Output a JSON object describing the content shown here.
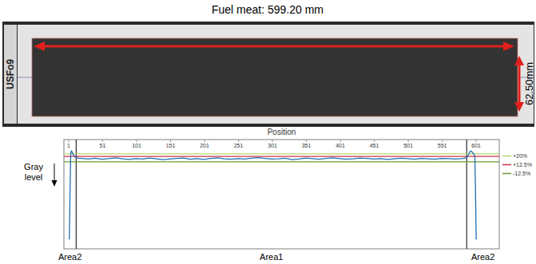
{
  "title": "Fuel meat: 599.20 mm",
  "photo": {
    "plate_id": "USFo9",
    "width_label": "62.50mm"
  },
  "chart_data": {
    "type": "line",
    "x_label": "Position",
    "y_label": "Gray level",
    "x": [
      1,
      2,
      3,
      4,
      5,
      6,
      8,
      10,
      13,
      16,
      20,
      30,
      40,
      50,
      60,
      70,
      80,
      90,
      100,
      110,
      120,
      130,
      140,
      150,
      160,
      170,
      180,
      190,
      200,
      210,
      220,
      230,
      240,
      250,
      260,
      270,
      280,
      290,
      300,
      310,
      320,
      330,
      340,
      350,
      360,
      370,
      380,
      390,
      400,
      410,
      420,
      430,
      440,
      450,
      460,
      470,
      480,
      490,
      500,
      510,
      520,
      530,
      540,
      550,
      560,
      570,
      580,
      585,
      588,
      591,
      593,
      595,
      597,
      599,
      600,
      601,
      602
    ],
    "series": [
      {
        "color": "#1f6fb4",
        "values": [
          10,
          10,
          55,
          96,
          99,
          98,
          95,
          93,
          92,
          91.6,
          91.5,
          90.8,
          91.6,
          90.6,
          91.2,
          92.0,
          91.0,
          90.4,
          91.3,
          90.9,
          91.8,
          91.1,
          90.2,
          90.8,
          91.5,
          91.9,
          90.7,
          91.2,
          90.5,
          91.4,
          92.1,
          91.0,
          90.6,
          91.3,
          90.9,
          91.7,
          92.2,
          91.4,
          90.8,
          91.1,
          91.6,
          90.3,
          90.9,
          91.8,
          91.2,
          90.6,
          91.4,
          92.0,
          91.3,
          90.7,
          91.1,
          91.9,
          91.5,
          90.8,
          91.2,
          90.5,
          91.0,
          91.6,
          91.3,
          90.7,
          91.4,
          91.0,
          90.6,
          91.5,
          91.2,
          90.9,
          91.3,
          91.8,
          93,
          97,
          99,
          98,
          96,
          94,
          60,
          10,
          10
        ]
      }
    ],
    "reference_lines": [
      {
        "name": "+20%",
        "color": "#b8d86b",
        "value": 96
      },
      {
        "name": "+12.5%",
        "color": "#d0304c",
        "value": 93.5
      },
      {
        "name": "-12.5%",
        "color": "#6a9e2e",
        "value": 88
      }
    ],
    "area_boundaries": [
      12,
      587
    ],
    "area_labels": [
      "Area2",
      "Area1",
      "Area2"
    ],
    "xlim": [
      -6,
      635
    ],
    "xticks": [
      1,
      51,
      101,
      151,
      201,
      251,
      301,
      351,
      401,
      451,
      501,
      551,
      601
    ],
    "ylim": [
      0,
      100
    ],
    "yticks": [],
    "tick_labels": "x",
    "grid": false,
    "legend": "right"
  }
}
